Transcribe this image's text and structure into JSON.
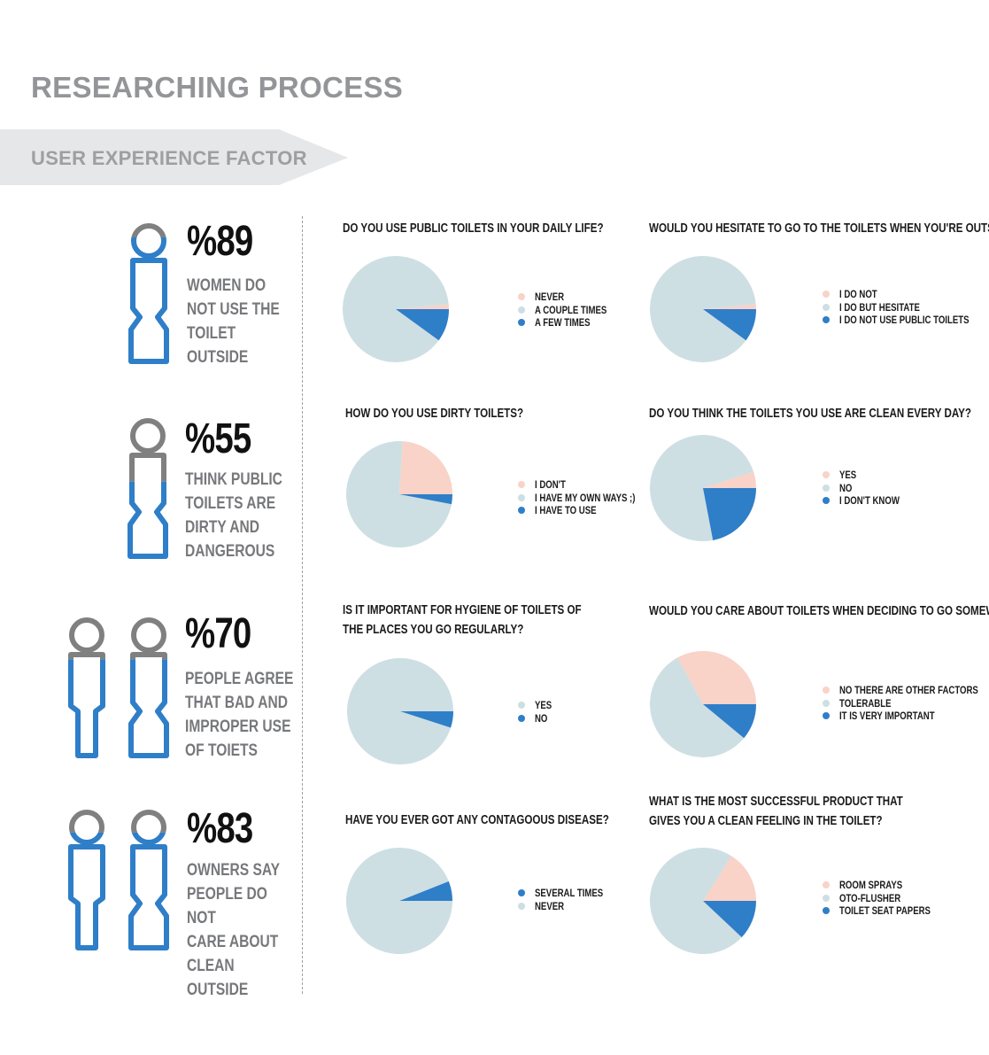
{
  "header": {
    "title": "RESEARCHING PROCESS",
    "banner": "USER EXPERIENCE FACTOR"
  },
  "colors": {
    "light_blue": "#cddfe3",
    "blue": "#2f7ec8",
    "peach": "#f9d2c8",
    "gray": "#808080"
  },
  "stats": [
    {
      "pct": "%89",
      "lines": [
        "WOMEN DO",
        "NOT USE THE",
        "TOILET",
        "OUTSIDE"
      ],
      "figures": 1,
      "fill_fraction": 0.89
    },
    {
      "pct": "%55",
      "lines": [
        "THINK PUBLIC",
        "TOILETS ARE",
        "DIRTY AND",
        "DANGEROUS"
      ],
      "figures": 1,
      "fill_fraction": 0.55
    },
    {
      "pct": "%70",
      "lines": [
        "PEOPLE AGREE",
        "THAT BAD AND",
        "IMPROPER USE",
        "OF TOIETS"
      ],
      "figures": 2,
      "fill_fraction": 0.7
    },
    {
      "pct": "%83",
      "lines": [
        "OWNERS SAY",
        "PEOPLE DO NOT",
        "CARE ABOUT",
        "CLEAN OUTSIDE"
      ],
      "figures": 2,
      "fill_fraction": 0.83
    }
  ],
  "chart_data": [
    {
      "type": "pie",
      "title": "DO YOU USE PUBLIC TOILETS IN YOUR DAILY LIFE?",
      "categories": [
        "NEVER",
        "A COUPLE TIMES",
        "A FEW TIMES"
      ],
      "values": [
        1.5,
        88.5,
        10
      ],
      "colors": [
        "#f9d2c8",
        "#cddfe3",
        "#2f7ec8"
      ],
      "legend_placement": "right"
    },
    {
      "type": "pie",
      "title": "WOULD YOU HESITATE TO GO TO THE TOILETS WHEN YOU'RE OUTSIDE?",
      "categories": [
        "I DO NOT",
        "I DO BUT HESITATE",
        "I DO NOT USE PUBLIC TOILETS"
      ],
      "values": [
        1.5,
        88.5,
        10
      ],
      "colors": [
        "#f9d2c8",
        "#cddfe3",
        "#2f7ec8"
      ],
      "legend_placement": "right"
    },
    {
      "type": "pie",
      "title": "HOW DO YOU USE DIRTY TOILETS?",
      "categories": [
        "I DON'T",
        "I HAVE MY OWN WAYS ;)",
        "I HAVE TO USE"
      ],
      "values": [
        24,
        73,
        3
      ],
      "colors": [
        "#f9d2c8",
        "#cddfe3",
        "#2f7ec8"
      ],
      "legend_placement": "right"
    },
    {
      "type": "pie",
      "title": "DO YOU THINK THE TOILETS YOU USE ARE CLEAN EVERY DAY?",
      "categories": [
        "YES",
        "NO",
        "I DON'T KNOW"
      ],
      "values": [
        5,
        73,
        22
      ],
      "colors": [
        "#f9d2c8",
        "#cddfe3",
        "#2f7ec8"
      ],
      "legend_placement": "right"
    },
    {
      "type": "pie",
      "title": "IS IT IMPORTANT FOR HYGIENE OF TOILETS OF THE PLACES YOU GO REGULARLY?",
      "categories": [
        "YES",
        "NO"
      ],
      "values": [
        95,
        5
      ],
      "colors": [
        "#cddfe3",
        "#2f7ec8"
      ],
      "legend_placement": "right"
    },
    {
      "type": "pie",
      "title": "WOULD YOU CARE ABOUT TOILETS WHEN DECIDING TO GO SOMEWHERE?",
      "categories": [
        "NO THERE ARE OTHER FACTORS",
        "TOLERABLE",
        "IT IS VERY IMPORTANT"
      ],
      "values": [
        33,
        56,
        11
      ],
      "colors": [
        "#f9d2c8",
        "#cddfe3",
        "#2f7ec8"
      ],
      "legend_placement": "right"
    },
    {
      "type": "pie",
      "title": "HAVE YOU EVER GOT ANY CONTAGOOUS DISEASE?",
      "categories": [
        "SEVERAL TIMES",
        "NEVER"
      ],
      "values": [
        6,
        94
      ],
      "colors": [
        "#2f7ec8",
        "#cddfe3"
      ],
      "legend_placement": "right"
    },
    {
      "type": "pie",
      "title": "WHAT IS THE MOST SUCCESSFUL PRODUCT THAT GIVES YOU A CLEAN FEELING IN THE TOILET?",
      "categories": [
        "ROOM SPRAYS",
        "OTO-FLUSHER",
        "TOILET SEAT PAPERS"
      ],
      "values": [
        16,
        72,
        12
      ],
      "colors": [
        "#f9d2c8",
        "#cddfe3",
        "#2f7ec8"
      ],
      "legend_placement": "right"
    }
  ]
}
